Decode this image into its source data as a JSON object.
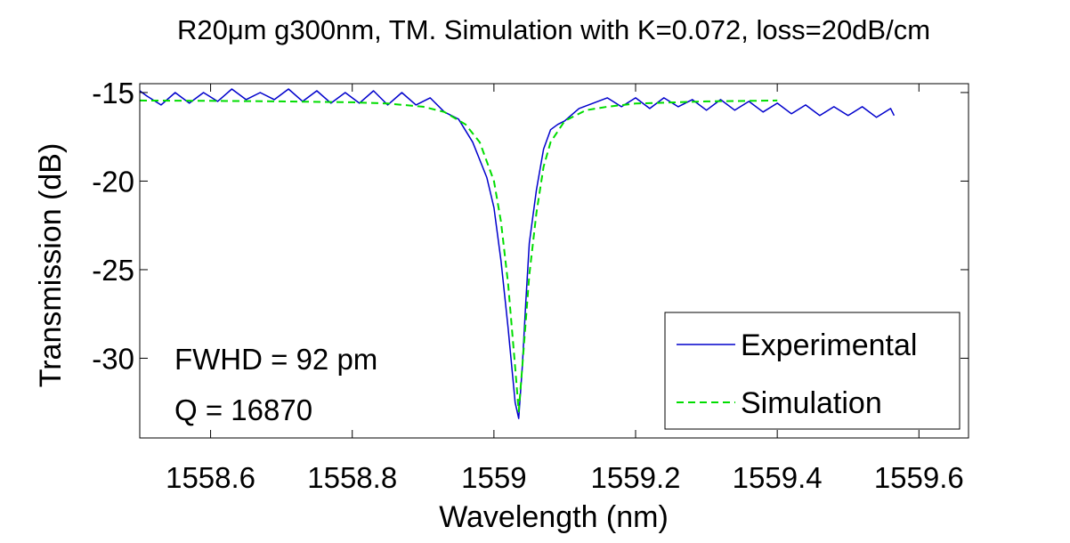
{
  "chart_data": {
    "type": "line",
    "title": "R20μm g300nm, TM. Simulation with K=0.072, loss=20dB/cm",
    "xlabel": "Wavelength (nm)",
    "ylabel": "Transmission (dB)",
    "xlim": [
      1558.5,
      1559.67
    ],
    "ylim": [
      -34.5,
      -14.5
    ],
    "xticks": [
      1558.6,
      1558.8,
      1559,
      1559.2,
      1559.4,
      1559.6
    ],
    "xtick_labels": [
      "1558.6",
      "1558.8",
      "1559",
      "1559.2",
      "1559.4",
      "1559.6"
    ],
    "yticks": [
      -15,
      -20,
      -25,
      -30
    ],
    "ytick_labels": [
      "-15",
      "-20",
      "-25",
      "-30"
    ],
    "grid": false,
    "legend_position": "bottom-right",
    "annotations": [
      "FWHD = 92 pm",
      "Q = 16870"
    ],
    "series": [
      {
        "name": "Experimental",
        "color": "#0000cc",
        "style": "solid",
        "x": [
          1558.5,
          1558.51,
          1558.53,
          1558.55,
          1558.57,
          1558.59,
          1558.61,
          1558.63,
          1558.65,
          1558.67,
          1558.69,
          1558.71,
          1558.73,
          1558.75,
          1558.77,
          1558.79,
          1558.81,
          1558.83,
          1558.85,
          1558.87,
          1558.89,
          1558.91,
          1558.93,
          1558.95,
          1558.97,
          1558.99,
          1559.0,
          1559.01,
          1559.02,
          1559.03,
          1559.035,
          1559.04,
          1559.045,
          1559.05,
          1559.06,
          1559.07,
          1559.08,
          1559.09,
          1559.1,
          1559.12,
          1559.14,
          1559.16,
          1559.18,
          1559.2,
          1559.22,
          1559.24,
          1559.26,
          1559.28,
          1559.3,
          1559.32,
          1559.34,
          1559.36,
          1559.38,
          1559.4,
          1559.42,
          1559.44,
          1559.46,
          1559.48,
          1559.5,
          1559.52,
          1559.54,
          1559.56,
          1559.565
        ],
        "y": [
          -14.9,
          -15.2,
          -15.7,
          -15.0,
          -15.6,
          -15.0,
          -15.5,
          -14.8,
          -15.4,
          -15.0,
          -15.4,
          -14.8,
          -15.5,
          -14.9,
          -15.6,
          -15.0,
          -15.6,
          -14.9,
          -15.7,
          -15.0,
          -15.7,
          -15.3,
          -16.1,
          -16.5,
          -17.8,
          -19.8,
          -21.5,
          -24.5,
          -28.3,
          -32.5,
          -33.4,
          -30.5,
          -26.8,
          -23.5,
          -20.5,
          -18.2,
          -17.1,
          -16.8,
          -16.6,
          -15.9,
          -15.6,
          -15.3,
          -15.8,
          -15.3,
          -15.9,
          -15.3,
          -15.8,
          -15.4,
          -16.0,
          -15.4,
          -16.0,
          -15.5,
          -16.1,
          -15.6,
          -16.2,
          -15.7,
          -16.3,
          -15.8,
          -16.3,
          -15.8,
          -16.4,
          -15.9,
          -16.3
        ]
      },
      {
        "name": "Simulation",
        "color": "#00dd00",
        "style": "dashed",
        "x": [
          1558.5,
          1558.6,
          1558.7,
          1558.8,
          1558.85,
          1558.9,
          1558.93,
          1558.96,
          1558.98,
          1559.0,
          1559.01,
          1559.02,
          1559.03,
          1559.035,
          1559.04,
          1559.05,
          1559.06,
          1559.07,
          1559.08,
          1559.1,
          1559.13,
          1559.16,
          1559.2,
          1559.3,
          1559.4
        ],
        "y": [
          -15.45,
          -15.47,
          -15.5,
          -15.55,
          -15.62,
          -15.8,
          -16.1,
          -16.8,
          -17.8,
          -20.0,
          -22.3,
          -25.8,
          -30.5,
          -33.0,
          -30.5,
          -25.3,
          -21.8,
          -19.2,
          -17.8,
          -16.6,
          -16.0,
          -15.8,
          -15.62,
          -15.5,
          -15.45
        ]
      }
    ]
  }
}
